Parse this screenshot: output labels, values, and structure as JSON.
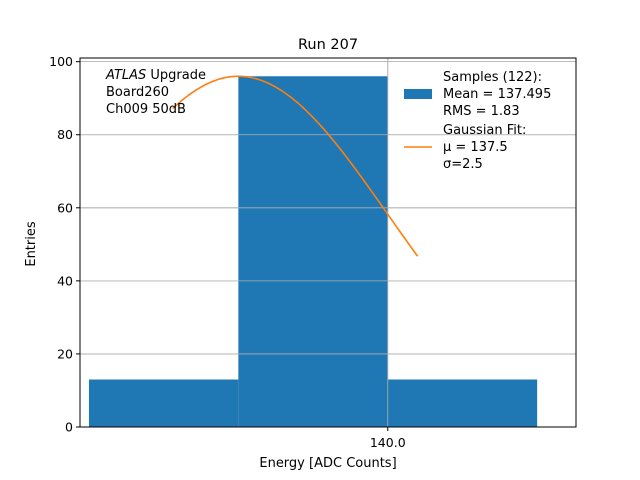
{
  "chart_data": {
    "type": "bar",
    "title": "Run 207",
    "xlabel": "Energy [ADC Counts]",
    "ylabel": "Entries",
    "xlim": [
      134.85,
      143.15
    ],
    "ylim": [
      0,
      101
    ],
    "grid": true,
    "x_ticks": [
      140.0
    ],
    "x_tick_labels": [
      "140.0"
    ],
    "y_ticks": [
      0,
      20,
      40,
      60,
      80,
      100
    ],
    "bins": [
      {
        "left": 135.0,
        "right": 137.5,
        "count": 13
      },
      {
        "left": 137.5,
        "right": 140.0,
        "count": 96
      },
      {
        "left": 140.0,
        "right": 142.5,
        "count": 13
      }
    ],
    "fit": {
      "type": "gaussian",
      "mu": 137.5,
      "sigma": 2.5,
      "amplitude": 96,
      "x_range": [
        136.4,
        140.5
      ]
    },
    "colors": {
      "bars": "#1f77b4",
      "fit": "#ff7f0e"
    },
    "annotation": {
      "lines": [
        {
          "italic": "ATLAS",
          "text": " Upgrade"
        },
        {
          "italic": "",
          "text": " Board260"
        },
        {
          "italic": "",
          "text": " Ch009 50dB"
        }
      ],
      "placement": "top-left"
    },
    "legend": {
      "placement": "top-right",
      "entries": [
        {
          "kind": "patch",
          "lines": [
            "Samples (122):",
            " Mean = 137.495",
            " RMS = 1.83"
          ]
        },
        {
          "kind": "line",
          "lines": [
            "Gaussian Fit:",
            " μ = 137.5",
            " σ=2.5"
          ]
        }
      ]
    }
  }
}
